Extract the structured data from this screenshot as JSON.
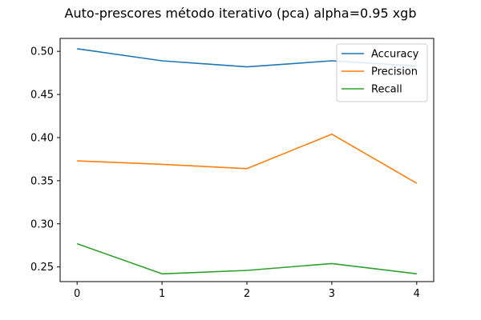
{
  "chart_data": {
    "type": "line",
    "title": "Auto-prescores método iterativo (pca) alpha=0.95 xgb",
    "xlabel": "",
    "ylabel": "",
    "x": [
      0,
      1,
      2,
      3,
      4
    ],
    "xticks": [
      "0",
      "1",
      "2",
      "3",
      "4"
    ],
    "yticks": [
      "0.25",
      "0.30",
      "0.35",
      "0.40",
      "0.45",
      "0.50"
    ],
    "xlim": [
      -0.2,
      4.2
    ],
    "ylim": [
      0.233,
      0.515
    ],
    "grid": false,
    "legend_position": "top-right",
    "series": [
      {
        "name": "Accuracy",
        "color": "#1f77b4",
        "values": [
          0.503,
          0.489,
          0.482,
          0.489,
          0.483
        ]
      },
      {
        "name": "Precision",
        "color": "#ff7f0e",
        "values": [
          0.373,
          0.369,
          0.364,
          0.404,
          0.347
        ]
      },
      {
        "name": "Recall",
        "color": "#2ca02c",
        "values": [
          0.277,
          0.242,
          0.246,
          0.254,
          0.242
        ]
      }
    ]
  }
}
